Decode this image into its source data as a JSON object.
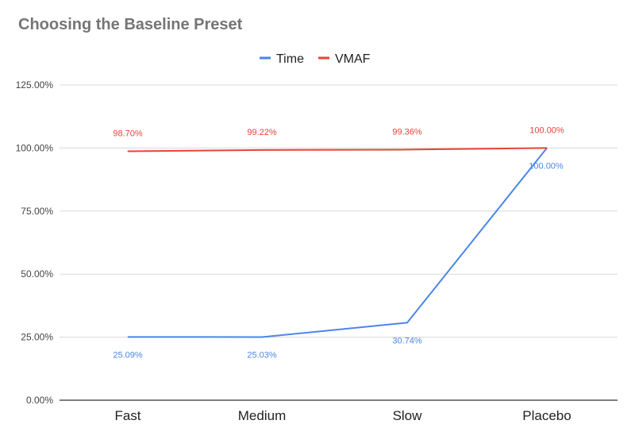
{
  "chart_data": {
    "type": "line",
    "title": "Choosing the Baseline Preset",
    "categories": [
      "Fast",
      "Medium",
      "Slow",
      "Placebo"
    ],
    "series": [
      {
        "name": "Time",
        "color": "#4a86e8",
        "values": [
          25.09,
          25.03,
          30.74,
          100.0
        ],
        "labels": [
          "25.09%",
          "25.03%",
          "30.74%",
          "100.00%"
        ]
      },
      {
        "name": "VMAF",
        "color": "#e84335",
        "values": [
          98.7,
          99.22,
          99.36,
          100.0
        ],
        "labels": [
          "98.70%",
          "99.22%",
          "99.36%",
          "100.00%"
        ]
      }
    ],
    "yticks": [
      "0.00%",
      "25.00%",
      "50.00%",
      "75.00%",
      "100.00%",
      "125.00%"
    ],
    "ylim": [
      0,
      125
    ],
    "xlabel": "",
    "ylabel": "",
    "grid": true,
    "legend_position": "top-center"
  }
}
